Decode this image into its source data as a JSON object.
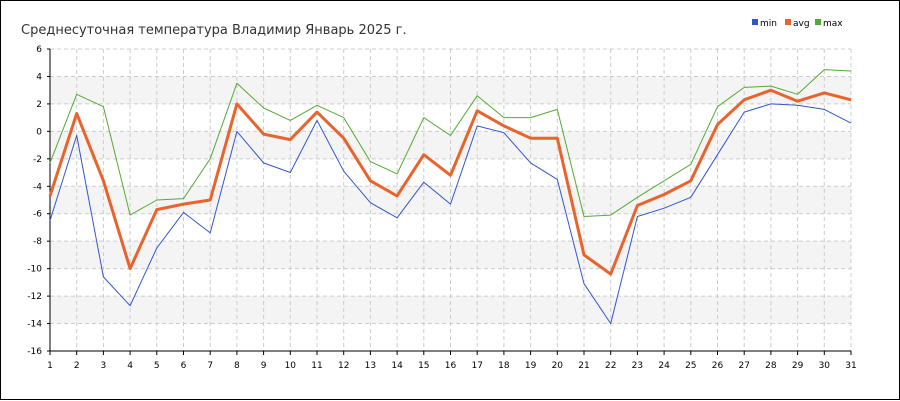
{
  "chart_data": {
    "type": "line",
    "title": "Среднесуточная температура Владимир  Январь 2025 г.",
    "xlabel": "",
    "ylabel": "",
    "x": [
      1,
      2,
      3,
      4,
      5,
      6,
      7,
      8,
      9,
      10,
      11,
      12,
      13,
      14,
      15,
      16,
      17,
      18,
      19,
      20,
      21,
      22,
      23,
      24,
      25,
      26,
      27,
      28,
      29,
      30,
      31
    ],
    "ylim": [
      -16,
      6
    ],
    "yticks": [
      6,
      4,
      2,
      0,
      -2,
      -4,
      -6,
      -8,
      -10,
      -12,
      -14,
      -16
    ],
    "grid": true,
    "legend_position": "top-right",
    "series": [
      {
        "name": "min",
        "color": "#3355cc",
        "values": [
          -6.5,
          -0.3,
          -10.6,
          -12.7,
          -8.5,
          -5.9,
          -7.4,
          0.0,
          -2.3,
          -3.0,
          0.8,
          -2.9,
          -5.2,
          -6.3,
          -3.7,
          -5.3,
          0.4,
          -0.1,
          -2.3,
          -3.5,
          -11.1,
          -14.0,
          -6.2,
          -5.6,
          -4.8,
          -1.7,
          1.4,
          2.0,
          1.9,
          1.6,
          0.6
        ]
      },
      {
        "name": "avg",
        "color": "#e8642c",
        "values": [
          -4.7,
          1.3,
          -3.6,
          -10.0,
          -5.7,
          -5.3,
          -5.0,
          2.0,
          -0.2,
          -0.6,
          1.4,
          -0.5,
          -3.6,
          -4.7,
          -1.7,
          -3.2,
          1.5,
          0.4,
          -0.5,
          -0.5,
          -9.0,
          -10.4,
          -5.4,
          -4.6,
          -3.6,
          0.5,
          2.3,
          3.0,
          2.2,
          2.8,
          2.3
        ]
      },
      {
        "name": "max",
        "color": "#55aa33",
        "values": [
          -2.3,
          2.7,
          1.8,
          -6.1,
          -5.0,
          -4.9,
          -2.0,
          3.5,
          1.7,
          0.8,
          1.9,
          1.0,
          -2.2,
          -3.1,
          1.0,
          -0.3,
          2.6,
          1.0,
          1.0,
          1.6,
          -6.2,
          -6.1,
          -4.8,
          -3.6,
          -2.4,
          1.8,
          3.2,
          3.3,
          2.7,
          4.5,
          4.4
        ]
      }
    ]
  }
}
